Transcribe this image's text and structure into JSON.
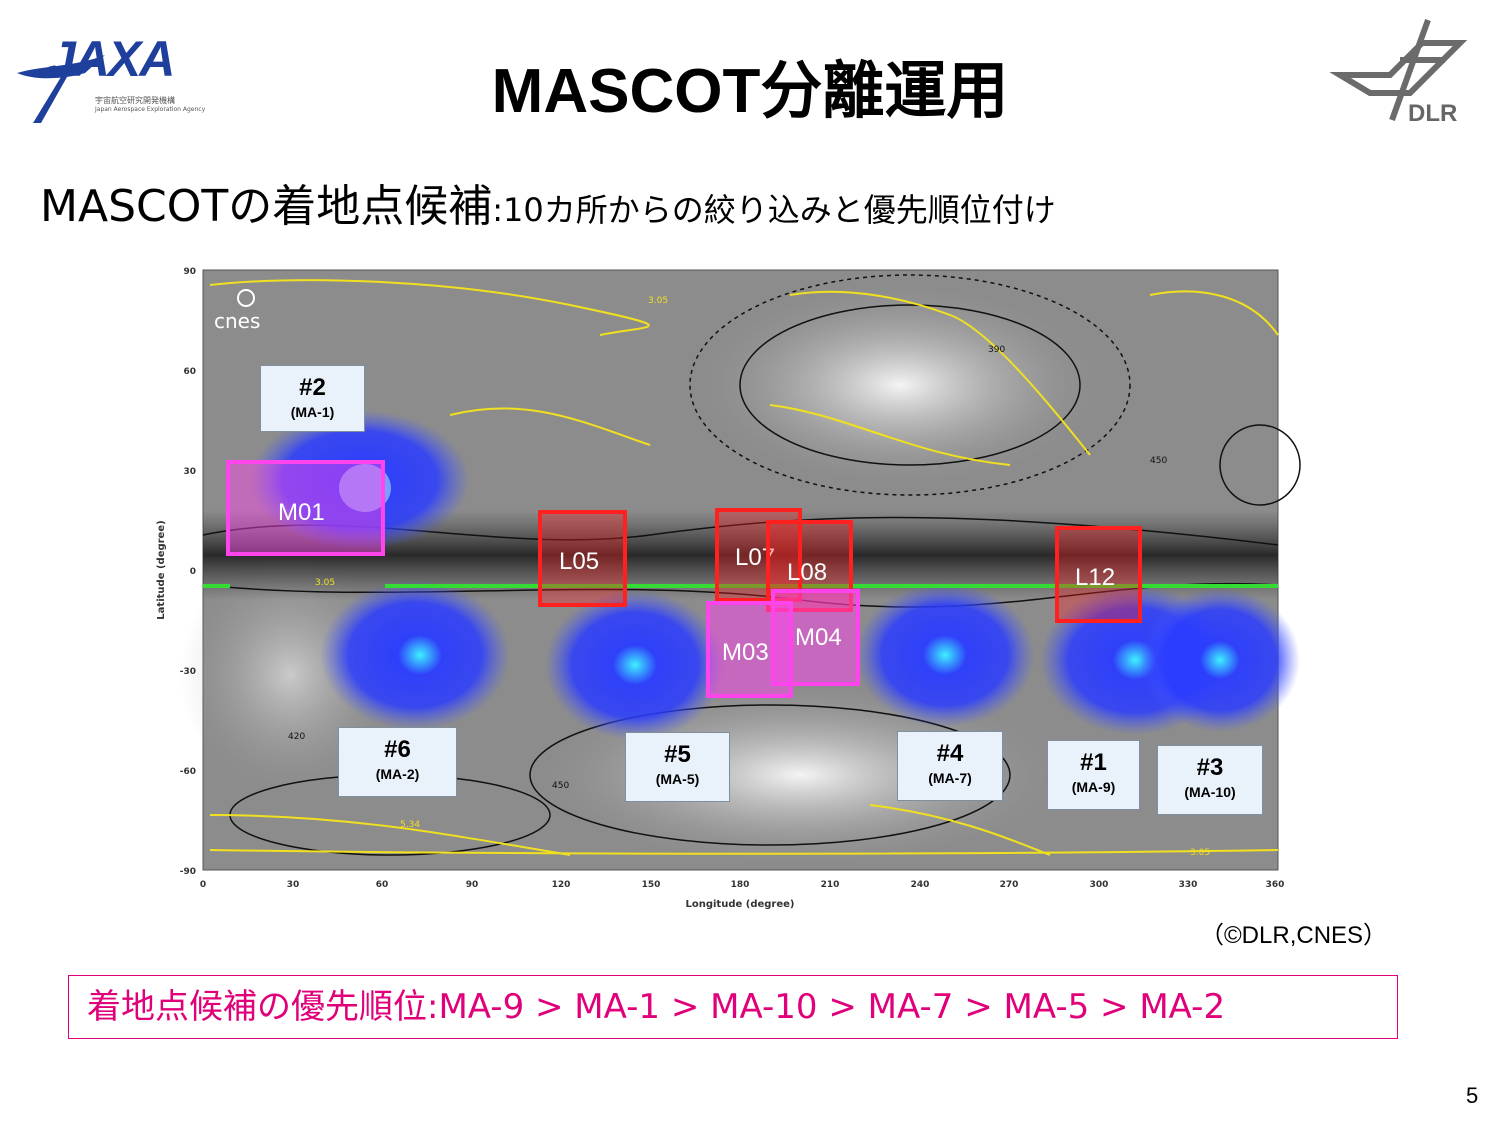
{
  "title": "MASCOT分離運用",
  "subtitle": {
    "main": "MASCOTの着地点候補",
    "rest": ":10カ所からの絞り込みと優先順位付け"
  },
  "logos": {
    "jaxa": "JAXA",
    "jaxa_ja": "宇宙航空研究開発機構",
    "jaxa_en": "Japan Aerospace Exploration Agency",
    "dlr": "DLR",
    "cnes": "cnes"
  },
  "map": {
    "x_axis": {
      "label": "Longitude (degree)",
      "ticks": [
        "0",
        "30",
        "60",
        "90",
        "120",
        "150",
        "180",
        "210",
        "240",
        "270",
        "300",
        "330",
        "360"
      ]
    },
    "y_axis": {
      "label": "Latitude (degree)",
      "ticks": [
        "90",
        "60",
        "30",
        "0",
        "-30",
        "-60",
        "-90"
      ]
    },
    "contour_labels": [
      "3.05",
      "390",
      "420",
      "450",
      "5.34"
    ],
    "sites": [
      {
        "num": "#2",
        "ma": "(MA-1)"
      },
      {
        "num": "#6",
        "ma": "(MA-2)"
      },
      {
        "num": "#5",
        "ma": "(MA-5)"
      },
      {
        "num": "#4",
        "ma": "(MA-7)"
      },
      {
        "num": "#1",
        "ma": "(MA-9)"
      },
      {
        "num": "#3",
        "ma": "(MA-10)"
      }
    ],
    "regions": [
      {
        "label": "M01",
        "color": "#ff44ee"
      },
      {
        "label": "L05",
        "color": "#ff2020"
      },
      {
        "label": "L07",
        "color": "#ff2020"
      },
      {
        "label": "L08",
        "color": "#ff2020"
      },
      {
        "label": "L12",
        "color": "#ff2020"
      },
      {
        "label": "M03",
        "color": "#ff44ee"
      },
      {
        "label": "M04",
        "color": "#ff44ee"
      }
    ]
  },
  "credit": "（©DLR,CNES）",
  "priority": "着地点候補の優先順位:MA-9 > MA-1 > MA-10 > MA-7 > MA-5 > MA-2",
  "page_number": "5"
}
